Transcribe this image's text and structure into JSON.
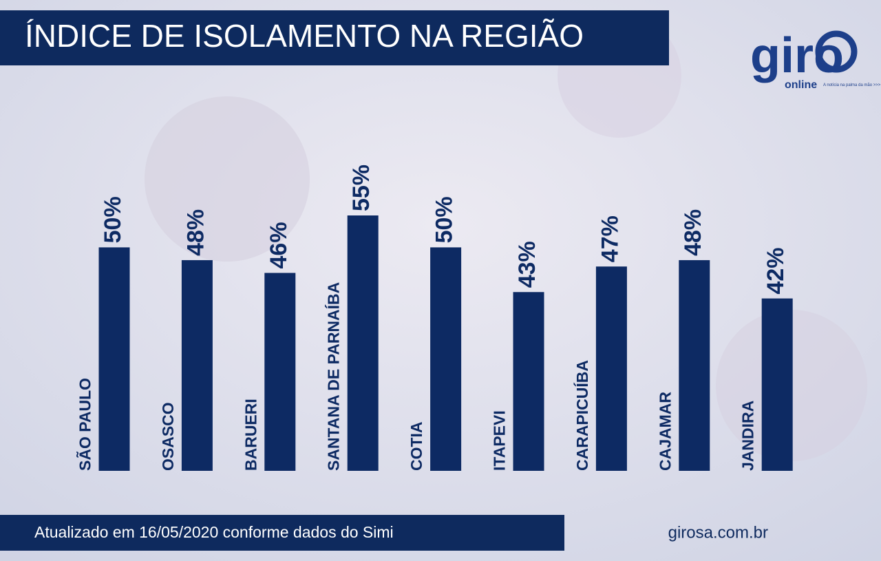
{
  "chart_data": {
    "type": "bar",
    "title": "ÍNDICE DE ISOLAMENTO NA REGIÃO",
    "categories": [
      "SÃO PAULO",
      "OSASCO",
      "BARUERI",
      "SANTANA DE PARNAÍBA",
      "COTIA",
      "ITAPEVI",
      "CARAPICUÍBA",
      "CAJAMAR",
      "JANDIRA"
    ],
    "values": [
      50,
      48,
      46,
      55,
      50,
      43,
      47,
      48,
      42
    ],
    "value_labels": [
      "50%",
      "48%",
      "46%",
      "55%",
      "50%",
      "43%",
      "47%",
      "48%",
      "42%"
    ],
    "color": "#0d2a63",
    "ylim": [
      15,
      55
    ],
    "note": "Atualizado em 16/05/2020 conforme dados do Simi",
    "website": "girosa.com.br"
  },
  "logo": {
    "name": "giro",
    "sub": "online",
    "tagline": "A notícia na palma da mão >>>"
  }
}
